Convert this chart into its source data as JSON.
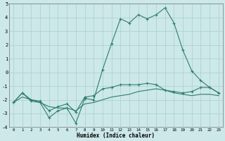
{
  "xlabel": "Humidex (Indice chaleur)",
  "x": [
    0,
    1,
    2,
    3,
    4,
    5,
    6,
    7,
    8,
    9,
    10,
    11,
    12,
    13,
    14,
    15,
    16,
    17,
    18,
    19,
    20,
    21,
    22,
    23
  ],
  "line1": [
    -2.2,
    -1.5,
    -2.1,
    -2.2,
    -3.3,
    -2.8,
    -2.6,
    -3.7,
    -1.9,
    -2.0,
    0.2,
    2.1,
    3.9,
    3.6,
    4.2,
    3.9,
    4.2,
    4.7,
    3.6,
    1.6,
    0.1,
    -0.6,
    -1.1,
    -1.5
  ],
  "line2": [
    -2.2,
    -1.5,
    -2.0,
    -2.1,
    -2.8,
    -2.5,
    -2.3,
    -2.9,
    -1.8,
    -1.7,
    -1.2,
    -1.1,
    -0.9,
    -0.9,
    -0.9,
    -0.8,
    -0.9,
    -1.3,
    -1.4,
    -1.5,
    -1.4,
    -1.1,
    -1.1,
    -1.5
  ],
  "line3": [
    -2.2,
    -1.8,
    -2.0,
    -2.2,
    -2.5,
    -2.6,
    -2.6,
    -2.8,
    -2.3,
    -2.2,
    -2.0,
    -1.8,
    -1.7,
    -1.6,
    -1.4,
    -1.3,
    -1.2,
    -1.3,
    -1.5,
    -1.6,
    -1.7,
    -1.6,
    -1.6,
    -1.7
  ],
  "line_color": "#2e7d6e",
  "bg_color": "#cce8e8",
  "grid_color": "#aacfcf",
  "ylim": [
    -4,
    5
  ],
  "xlim": [
    -0.5,
    23.5
  ],
  "yticks": [
    -4,
    -3,
    -2,
    -1,
    0,
    1,
    2,
    3,
    4,
    5
  ],
  "xticks": [
    0,
    1,
    2,
    3,
    4,
    5,
    6,
    7,
    8,
    9,
    10,
    11,
    12,
    13,
    14,
    15,
    16,
    17,
    18,
    19,
    20,
    21,
    22,
    23
  ]
}
